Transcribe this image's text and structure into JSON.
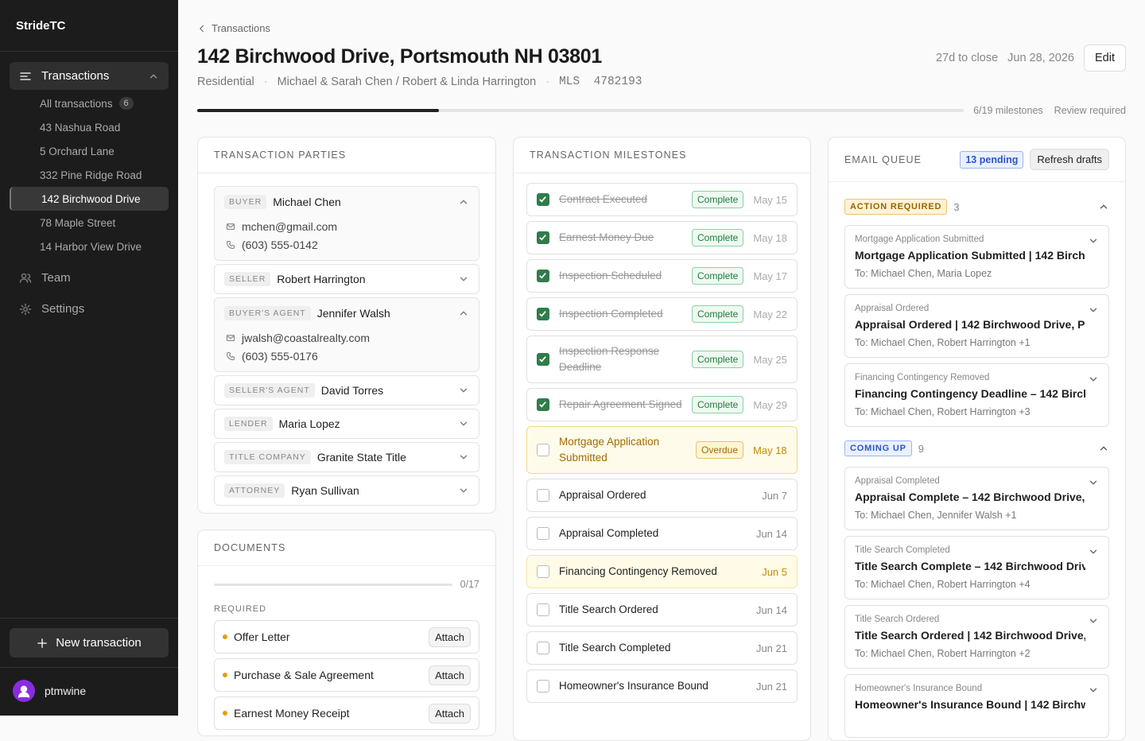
{
  "sidebar": {
    "brand": "StrideTC",
    "section": "Transactions",
    "items": [
      {
        "label": "All transactions",
        "count": 6
      },
      {
        "label": "43 Nashua Road"
      },
      {
        "label": "5 Orchard Lane"
      },
      {
        "label": "332 Pine Ridge Road"
      },
      {
        "label": "142 Birchwood Drive",
        "state": "active"
      },
      {
        "label": "78 Maple Street"
      },
      {
        "label": "14 Harbor View Drive"
      }
    ],
    "nav": [
      "Team",
      "Settings"
    ],
    "new_button": "New transaction",
    "user": "ptmwine"
  },
  "header": {
    "breadcrumb": "Transactions",
    "title": "142 Birchwood Drive, Portsmouth NH 03801",
    "meta": [
      "Residential",
      "Michael & Sarah Chen / Robert & Linda Harrington"
    ],
    "mls_label": "MLS",
    "mls": "4782193",
    "countdown": "27d to close",
    "close_date": "Jun 28, 2026",
    "edit": "Edit",
    "progress": {
      "done": 6,
      "total": 19,
      "label": "6/19 milestones",
      "status": "Review required"
    }
  },
  "parties": {
    "title": "TRANSACTION PARTIES",
    "items": [
      {
        "role": "BUYER",
        "name": "Michael Chen",
        "email": "mchen@gmail.com",
        "phone": "(603) 555-0142"
      },
      {
        "role": "SELLER",
        "name": "Robert Harrington"
      },
      {
        "role": "BUYER'S AGENT",
        "name": "Jennifer Walsh",
        "email": "jwalsh@coastalrealty.com",
        "phone": "(603) 555-0176"
      },
      {
        "role": "SELLER'S AGENT",
        "name": "David Torres"
      },
      {
        "role": "LENDER",
        "name": "Maria Lopez"
      },
      {
        "role": "TITLE COMPANY",
        "name": "Granite State Title"
      },
      {
        "role": "ATTORNEY",
        "name": "Ryan Sullivan"
      }
    ]
  },
  "documents": {
    "title": "DOCUMENTS",
    "progress": "0/17",
    "section": "REQUIRED",
    "attach": "Attach",
    "items": [
      "Offer Letter",
      "Purchase & Sale Agreement",
      "Earnest Money Receipt"
    ]
  },
  "milestones": {
    "title": "TRANSACTION MILESTONES",
    "items": [
      {
        "name": "Contract Executed",
        "status": "Complete",
        "date": "May 15",
        "state": "complete"
      },
      {
        "name": "Earnest Money Due",
        "status": "Complete",
        "date": "May 18",
        "state": "complete"
      },
      {
        "name": "Inspection Scheduled",
        "status": "Complete",
        "date": "May 17",
        "state": "complete"
      },
      {
        "name": "Inspection Completed",
        "status": "Complete",
        "date": "May 22",
        "state": "complete"
      },
      {
        "name": "Inspection Response Deadline",
        "status": "Complete",
        "date": "May 25",
        "state": "complete"
      },
      {
        "name": "Repair Agreement Signed",
        "status": "Complete",
        "date": "May 29",
        "state": "complete"
      },
      {
        "name": "Mortgage Application Submitted",
        "status": "Overdue",
        "date": "May 18",
        "state": "overdue"
      },
      {
        "name": "Appraisal Ordered",
        "date": "Jun 7",
        "state": "pending"
      },
      {
        "name": "Appraisal Completed",
        "date": "Jun 14",
        "state": "pending"
      },
      {
        "name": "Financing Contingency Removed",
        "date": "Jun 5",
        "state": "due"
      },
      {
        "name": "Title Search Ordered",
        "date": "Jun 14",
        "state": "pending"
      },
      {
        "name": "Title Search Completed",
        "date": "Jun 21",
        "state": "pending"
      },
      {
        "name": "Homeowner's Insurance Bound",
        "date": "Jun 21",
        "state": "pending"
      }
    ]
  },
  "email_queue": {
    "title": "EMAIL QUEUE",
    "pending": "13 pending",
    "refresh": "Refresh drafts",
    "groups": [
      {
        "label": "ACTION REQUIRED",
        "count": 3,
        "tone": "amber",
        "emails": [
          {
            "trigger": "Mortgage Application Submitted",
            "subject": "Mortgage Application Submitted | 142 Birch…",
            "to": "To: Michael Chen, Maria Lopez"
          },
          {
            "trigger": "Appraisal Ordered",
            "subject": "Appraisal Ordered | 142 Birchwood Drive, Po…",
            "to": "To: Michael Chen, Robert Harrington +1"
          },
          {
            "trigger": "Financing Contingency Removed",
            "subject": "Financing Contingency Deadline – 142 Birch…",
            "to": "To: Michael Chen, Robert Harrington +3"
          }
        ]
      },
      {
        "label": "COMING UP",
        "count": 9,
        "tone": "blue",
        "emails": [
          {
            "trigger": "Appraisal Completed",
            "subject": "Appraisal Complete – 142 Birchwood Drive, …",
            "to": "To: Michael Chen, Jennifer Walsh +1"
          },
          {
            "trigger": "Title Search Completed",
            "subject": "Title Search Complete – 142 Birchwood Driv…",
            "to": "To: Michael Chen, Robert Harrington +4"
          },
          {
            "trigger": "Title Search Ordered",
            "subject": "Title Search Ordered | 142 Birchwood Drive, …",
            "to": "To: Michael Chen, Robert Harrington +2"
          },
          {
            "trigger": "Homeowner's Insurance Bound",
            "subject": "Homeowner's Insurance Bound | 142 Birchw…"
          }
        ]
      }
    ]
  }
}
